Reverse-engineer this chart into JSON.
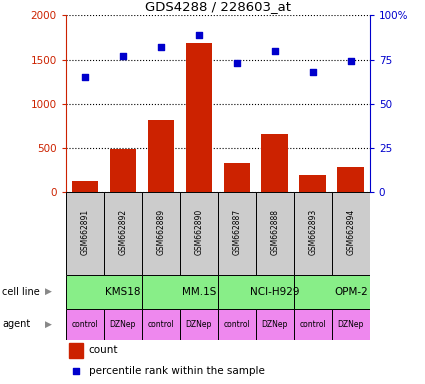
{
  "title": "GDS4288 / 228603_at",
  "samples": [
    "GSM662891",
    "GSM662892",
    "GSM662889",
    "GSM662890",
    "GSM662887",
    "GSM662888",
    "GSM662893",
    "GSM662894"
  ],
  "counts": [
    130,
    490,
    810,
    1690,
    330,
    660,
    190,
    280
  ],
  "percentiles": [
    65,
    77,
    82,
    89,
    73,
    80,
    68,
    74
  ],
  "cell_lines": [
    {
      "label": "KMS18",
      "start": 0,
      "end": 2
    },
    {
      "label": "MM.1S",
      "start": 2,
      "end": 4
    },
    {
      "label": "NCI-H929",
      "start": 4,
      "end": 6
    },
    {
      "label": "OPM-2",
      "start": 6,
      "end": 8
    }
  ],
  "agents": [
    "control",
    "DZNep",
    "control",
    "DZNep",
    "control",
    "DZNep",
    "control",
    "DZNep"
  ],
  "bar_color": "#cc2200",
  "dot_color": "#0000cc",
  "cell_line_color": "#88ee88",
  "agent_color": "#ee88ee",
  "sample_box_color": "#cccccc",
  "ylim_left": [
    0,
    2000
  ],
  "ylim_right": [
    0,
    100
  ],
  "yticks_left": [
    0,
    500,
    1000,
    1500,
    2000
  ],
  "ytick_labels_left": [
    "0",
    "500",
    "1000",
    "1500",
    "2000"
  ],
  "yticks_right": [
    0,
    25,
    50,
    75,
    100
  ],
  "ytick_labels_right": [
    "0",
    "25",
    "50",
    "75",
    "100%"
  ],
  "fig_width": 4.25,
  "fig_height": 3.84,
  "dpi": 100
}
